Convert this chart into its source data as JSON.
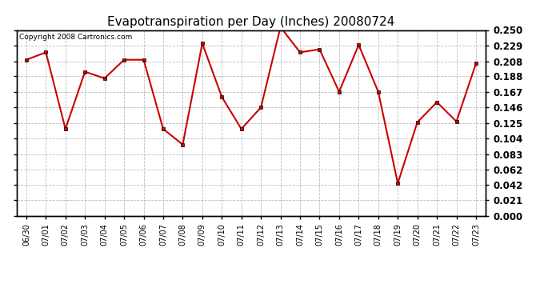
{
  "title": "Evapotranspiration per Day (Inches) 20080724",
  "copyright": "Copyright 2008 Cartronics.com",
  "dates": [
    "06/30",
    "07/01",
    "07/02",
    "07/03",
    "07/04",
    "07/05",
    "07/06",
    "07/07",
    "07/08",
    "07/09",
    "07/10",
    "07/11",
    "07/12",
    "07/13",
    "07/14",
    "07/15",
    "07/16",
    "07/17",
    "07/18",
    "07/19",
    "07/20",
    "07/21",
    "07/22",
    "07/23"
  ],
  "values": [
    0.21,
    0.22,
    0.117,
    0.194,
    0.185,
    0.21,
    0.21,
    0.117,
    0.096,
    0.232,
    0.16,
    0.117,
    0.146,
    0.254,
    0.22,
    0.224,
    0.167,
    0.23,
    0.167,
    0.044,
    0.126,
    0.153,
    0.127,
    0.205
  ],
  "ylim": [
    0.0,
    0.25
  ],
  "yticks": [
    0.0,
    0.021,
    0.042,
    0.062,
    0.083,
    0.104,
    0.125,
    0.146,
    0.167,
    0.188,
    0.208,
    0.229,
    0.25
  ],
  "line_color": "#cc0000",
  "marker_color": "#000000",
  "bg_color": "#ffffff",
  "grid_color": "#bbbbbb",
  "title_fontsize": 11,
  "copyright_fontsize": 6.5,
  "tick_fontsize": 8.5,
  "xtick_fontsize": 7
}
